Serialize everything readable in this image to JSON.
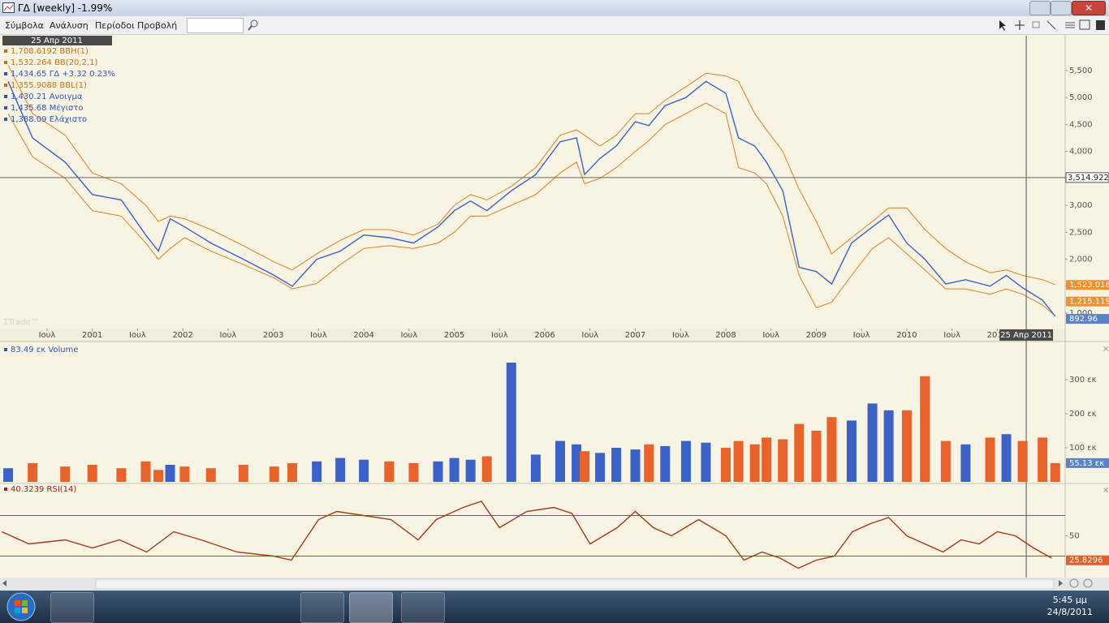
{
  "window": {
    "title": "ΓΔ [weekly] -1.99%"
  },
  "menu": [
    "Σύμβολα",
    "Ανάλυση",
    "Περίοδοι",
    "Προβολή"
  ],
  "chart_data": [
    {
      "type": "line",
      "watermark": "ΣTrade™",
      "legend": [
        {
          "text": "1,708.6192 BBH(1)",
          "color": "#d07010"
        },
        {
          "text": "1,532.264 BB(20,2,1)",
          "color": "#d07010"
        },
        {
          "text": "1,434.65 ΓΔ +3.32 0.23%",
          "color": "#2f55b8"
        },
        {
          "text": "1,355.9088 BBL(1)",
          "color": "#d07010"
        },
        {
          "text": "1,430.21 Ανοιγμα",
          "color": "#2f55b8"
        },
        {
          "text": "1,435.68 Μέγιστο",
          "color": "#2f55b8"
        },
        {
          "text": "1,388.09 Ελάχιστο",
          "color": "#2f55b8"
        }
      ],
      "x": [
        2000.07,
        2000.34,
        2000.7,
        2001.0,
        2001.32,
        2001.59,
        2001.73,
        2001.86,
        2002.02,
        2002.31,
        2002.67,
        2003.01,
        2003.21,
        2003.48,
        2003.74,
        2004.0,
        2004.28,
        2004.55,
        2004.82,
        2005.0,
        2005.18,
        2005.36,
        2005.63,
        2005.9,
        2006.17,
        2006.35,
        2006.44,
        2006.61,
        2006.79,
        2007.0,
        2007.15,
        2007.33,
        2007.56,
        2007.78,
        2008.0,
        2008.14,
        2008.32,
        2008.45,
        2008.63,
        2008.81,
        2009.0,
        2009.17,
        2009.39,
        2009.62,
        2009.8,
        2010.0,
        2010.2,
        2010.43,
        2010.65,
        2010.92,
        2011.1,
        2011.28,
        2011.5,
        2011.64
      ],
      "xlim": [
        1999.98,
        2011.75
      ],
      "xticks": [
        {
          "value": 2000.5,
          "label": "Ιουλ"
        },
        2001,
        {
          "value": 2001.5,
          "label": "Ιουλ"
        },
        2002,
        {
          "value": 2002.5,
          "label": "Ιουλ"
        },
        2003,
        {
          "value": 2003.5,
          "label": "Ιουλ"
        },
        2004,
        {
          "value": 2004.5,
          "label": "Ιουλ"
        },
        2005,
        {
          "value": 2005.5,
          "label": "Ιουλ"
        },
        2006,
        {
          "value": 2006.5,
          "label": "Ιουλ"
        },
        2007,
        {
          "value": 2007.5,
          "label": "Ιουλ"
        },
        2008,
        {
          "value": 2008.5,
          "label": "Ιουλ"
        },
        2009,
        {
          "value": 2009.5,
          "label": "Ιουλ"
        },
        2010,
        {
          "value": 2010.5,
          "label": "Ιουλ"
        },
        2011
      ],
      "ylim": [
        714,
        6147
      ],
      "yticks": [
        {
          "value": 1000,
          "label": "1,000"
        },
        {
          "value": 1500,
          "label": "1,500"
        },
        {
          "value": 2000,
          "label": "2,000"
        },
        {
          "value": 2500,
          "label": "2,500"
        },
        {
          "value": 3000,
          "label": "3,000"
        },
        {
          "value": 3500,
          "label": "3,500"
        },
        {
          "value": 4000,
          "label": "4,000"
        },
        {
          "value": 4500,
          "label": "4,500"
        },
        {
          "value": 5000,
          "label": "5,000"
        },
        {
          "value": 5500,
          "label": "5,500"
        }
      ],
      "series": [
        {
          "color": "#e08020",
          "values": [
            5600,
            4700,
            4300,
            3600,
            3400,
            3000,
            2700,
            2800,
            2750,
            2550,
            2250,
            1950,
            1800,
            2100,
            2350,
            2550,
            2550,
            2450,
            2650,
            3000,
            3200,
            3100,
            3350,
            3700,
            4300,
            4400,
            4300,
            4100,
            4300,
            4700,
            4700,
            4950,
            5200,
            5450,
            5400,
            5300,
            4700,
            4400,
            4000,
            3300,
            2700,
            2100,
            2400,
            2700,
            2950,
            2950,
            2550,
            2200,
            1950,
            1750,
            1800,
            1700,
            1620,
            1530
          ]
        },
        {
          "color": "#e08020",
          "values": [
            4700,
            3900,
            3500,
            2900,
            2800,
            2300,
            2000,
            2200,
            2400,
            2150,
            1900,
            1650,
            1450,
            1550,
            1900,
            2200,
            2250,
            2200,
            2300,
            2500,
            2800,
            2800,
            3000,
            3200,
            3600,
            3800,
            3400,
            3500,
            3700,
            4000,
            4200,
            4500,
            4700,
            4900,
            4700,
            3700,
            3600,
            3400,
            2800,
            1700,
            1100,
            1200,
            1700,
            2200,
            2400,
            2100,
            1800,
            1450,
            1450,
            1350,
            1450,
            1350,
            1150,
            950
          ]
        },
        {
          "color": "#3a62c8",
          "values": [
            5300,
            4250,
            3800,
            3200,
            3100,
            2450,
            2150,
            2750,
            2600,
            2300,
            2000,
            1700,
            1500,
            2000,
            2150,
            2450,
            2400,
            2300,
            2600,
            2900,
            3080,
            2900,
            3270,
            3570,
            4180,
            4250,
            3570,
            3870,
            4100,
            4550,
            4480,
            4850,
            5000,
            5300,
            5080,
            4250,
            4100,
            3800,
            3270,
            1850,
            1770,
            1540,
            2300,
            2600,
            2820,
            2300,
            2000,
            1540,
            1620,
            1500,
            1700,
            1470,
            1240,
            940
          ]
        }
      ],
      "crosshair": {
        "value": 3514.922,
        "label": "3,514.922"
      },
      "cursor": {
        "x": 2011.32,
        "label": "25 Απρ 2011"
      },
      "last_labels": [
        {
          "value": 1523.016,
          "label": "1,523.016",
          "color": "#f09030"
        },
        {
          "value": 1215.119,
          "label": "1,215.119",
          "color": "#f09030"
        },
        {
          "value": 892.96,
          "label": "892.96",
          "color": "#5a82c8"
        }
      ]
    },
    {
      "type": "bar",
      "legend": [
        {
          "text": "83.49 εκ Volume",
          "color": "#2f55b8"
        }
      ],
      "x": [
        2000.07,
        2000.34,
        2000.7,
        2001.0,
        2001.32,
        2001.59,
        2001.73,
        2001.86,
        2002.02,
        2002.31,
        2002.67,
        2003.01,
        2003.21,
        2003.48,
        2003.74,
        2004.0,
        2004.28,
        2004.55,
        2004.82,
        2005.0,
        2005.18,
        2005.36,
        2005.63,
        2005.9,
        2006.17,
        2006.35,
        2006.44,
        2006.61,
        2006.79,
        2007.0,
        2007.15,
        2007.33,
        2007.56,
        2007.78,
        2008.0,
        2008.14,
        2008.32,
        2008.45,
        2008.63,
        2008.81,
        2009.0,
        2009.17,
        2009.39,
        2009.62,
        2009.8,
        2010.0,
        2010.2,
        2010.43,
        2010.65,
        2010.92,
        2011.1,
        2011.28,
        2011.5,
        2011.64
      ],
      "xlim": [
        1999.98,
        2011.75
      ],
      "ylim": [
        0,
        400
      ],
      "yticks": [
        {
          "value": 100,
          "label": "100 εκ"
        },
        {
          "value": 200,
          "label": "200 εκ"
        },
        {
          "value": 300,
          "label": "300 εκ"
        }
      ],
      "values": [
        40,
        55,
        45,
        50,
        40,
        60,
        35,
        50,
        45,
        40,
        50,
        45,
        55,
        60,
        70,
        65,
        60,
        55,
        60,
        70,
        65,
        75,
        350,
        80,
        120,
        110,
        90,
        85,
        100,
        95,
        110,
        105,
        120,
        115,
        100,
        120,
        110,
        130,
        125,
        170,
        150,
        190,
        180,
        230,
        210,
        210,
        310,
        120,
        110,
        130,
        140,
        120,
        130,
        55
      ],
      "colors": [
        "#3a62c8",
        "#e8622a",
        "#e8622a",
        "#e8622a",
        "#e8622a",
        "#e8622a",
        "#e8622a",
        "#3a62c8",
        "#e8622a",
        "#e8622a",
        "#e8622a",
        "#e8622a",
        "#e8622a",
        "#3a62c8",
        "#3a62c8",
        "#3a62c8",
        "#e8622a",
        "#e8622a",
        "#3a62c8",
        "#3a62c8",
        "#3a62c8",
        "#e8622a",
        "#3a62c8",
        "#3a62c8",
        "#3a62c8",
        "#3a62c8",
        "#e8622a",
        "#3a62c8",
        "#3a62c8",
        "#3a62c8",
        "#e8622a",
        "#3a62c8",
        "#3a62c8",
        "#3a62c8",
        "#e8622a",
        "#e8622a",
        "#e8622a",
        "#e8622a",
        "#e8622a",
        "#e8622a",
        "#e8622a",
        "#e8622a",
        "#3a62c8",
        "#3a62c8",
        "#3a62c8",
        "#e8622a",
        "#e8622a",
        "#e8622a",
        "#3a62c8",
        "#e8622a",
        "#3a62c8",
        "#e8622a",
        "#e8622a",
        "#e8622a"
      ],
      "last_labels": [
        {
          "value": 55.13,
          "label": "55.13 εκ",
          "color": "#5a82c8"
        }
      ]
    },
    {
      "type": "line",
      "legend": [
        {
          "text": "40.3239 RSI(14)",
          "color": "#a02010"
        }
      ],
      "x": [
        2000.0,
        2000.3,
        2000.7,
        2001.0,
        2001.3,
        2001.6,
        2001.9,
        2002.2,
        2002.6,
        2003.0,
        2003.2,
        2003.5,
        2003.7,
        2004.0,
        2004.3,
        2004.6,
        2004.8,
        2005.1,
        2005.3,
        2005.5,
        2005.8,
        2006.1,
        2006.3,
        2006.5,
        2006.8,
        2007.0,
        2007.2,
        2007.4,
        2007.7,
        2008.0,
        2008.2,
        2008.4,
        2008.6,
        2008.8,
        2009.0,
        2009.2,
        2009.4,
        2009.6,
        2009.8,
        2010.0,
        2010.2,
        2010.4,
        2010.6,
        2010.8,
        2011.0,
        2011.2,
        2011.4,
        2011.6
      ],
      "xlim": [
        1999.98,
        2011.75
      ],
      "ylim": [
        8,
        100
      ],
      "yticks": [
        50
      ],
      "hlines": [
        30,
        70
      ],
      "hline_color": "#c04020",
      "series": [
        {
          "color": "#a83818",
          "values": [
            54,
            42,
            46,
            38,
            46,
            34,
            54,
            46,
            34,
            30,
            26,
            66,
            74,
            70,
            66,
            46,
            66,
            78,
            84,
            58,
            74,
            78,
            72,
            42,
            58,
            74,
            58,
            50,
            66,
            50,
            26,
            34,
            28,
            18,
            26,
            30,
            54,
            62,
            68,
            50,
            42,
            34,
            46,
            42,
            54,
            50,
            38,
            28
          ]
        }
      ],
      "last_labels": [
        {
          "value": 25.8296,
          "label": "25.8296",
          "color": "#e0602a"
        }
      ]
    }
  ],
  "taskbar": {
    "time": "5:45 μμ",
    "date": "24/8/2011"
  }
}
